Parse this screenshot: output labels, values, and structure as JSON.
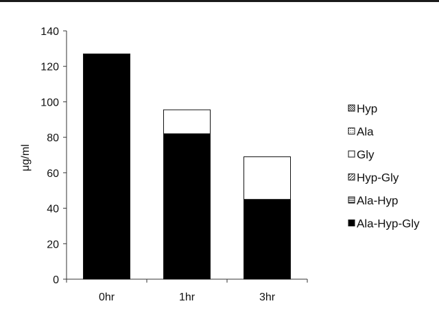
{
  "chart_data": {
    "type": "bar",
    "stacked": true,
    "title": "",
    "xlabel": "",
    "ylabel": "μg/ml",
    "ylim": [
      0,
      140
    ],
    "yticks": [
      0,
      20,
      40,
      60,
      80,
      100,
      120,
      140
    ],
    "categories": [
      "0hr",
      "1hr",
      "3hr"
    ],
    "grid": false,
    "legend_position": "right",
    "series": [
      {
        "name": "Ala-Hyp-Gly",
        "values": [
          127,
          82,
          45
        ],
        "color": "#000000",
        "pattern": "solid"
      },
      {
        "name": "Ala-Hyp",
        "values": [
          0,
          0,
          0
        ],
        "color": "#666666",
        "pattern": "horizontal-lines"
      },
      {
        "name": "Hyp-Gly",
        "values": [
          0,
          0,
          0
        ],
        "color": "#ffffff",
        "pattern": "diagonal-lines"
      },
      {
        "name": "Gly",
        "values": [
          0,
          13.5,
          24
        ],
        "color": "#ffffff",
        "pattern": "none"
      },
      {
        "name": "Ala",
        "values": [
          0,
          0,
          0
        ],
        "color": "#bbbbbb",
        "pattern": "dots"
      },
      {
        "name": "Hyp",
        "values": [
          0,
          0,
          0
        ],
        "color": "#888888",
        "pattern": "dense-diagonal"
      }
    ],
    "legend_order": [
      "Hyp",
      "Ala",
      "Gly",
      "Hyp-Gly",
      "Ala-Hyp",
      "Ala-Hyp-Gly"
    ]
  }
}
